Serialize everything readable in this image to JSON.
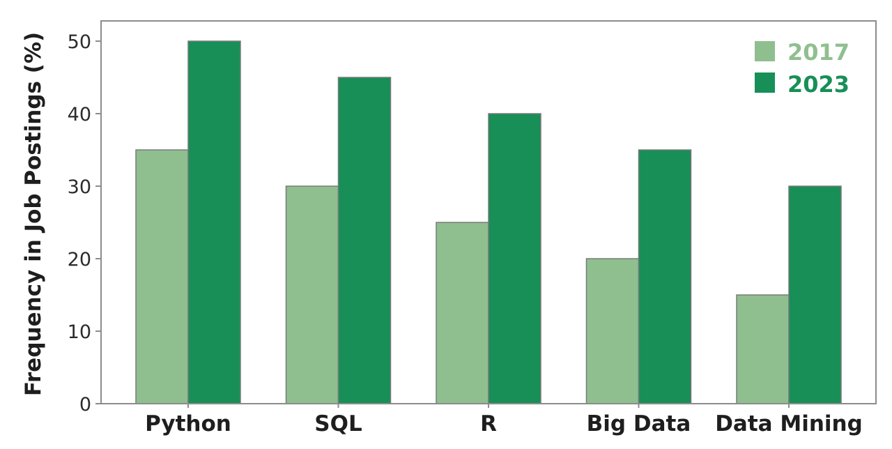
{
  "chart_data": {
    "type": "bar",
    "title": "",
    "xlabel": "",
    "ylabel": "Frequency in Job Postings (%)",
    "categories": [
      "Python",
      "SQL",
      "R",
      "Big Data",
      "Data Mining"
    ],
    "series": [
      {
        "name": "2017",
        "values": [
          35,
          30,
          25,
          20,
          15
        ],
        "color": "#8fbf8f"
      },
      {
        "name": "2023",
        "values": [
          50,
          45,
          40,
          35,
          30
        ],
        "color": "#178f57"
      }
    ],
    "ylim": [
      0,
      50
    ],
    "yticks": [
      "0",
      "10",
      "20",
      "30",
      "40",
      "50"
    ],
    "grid": false,
    "legend_position": "top-right",
    "axis_color": "#8c8c8c"
  }
}
